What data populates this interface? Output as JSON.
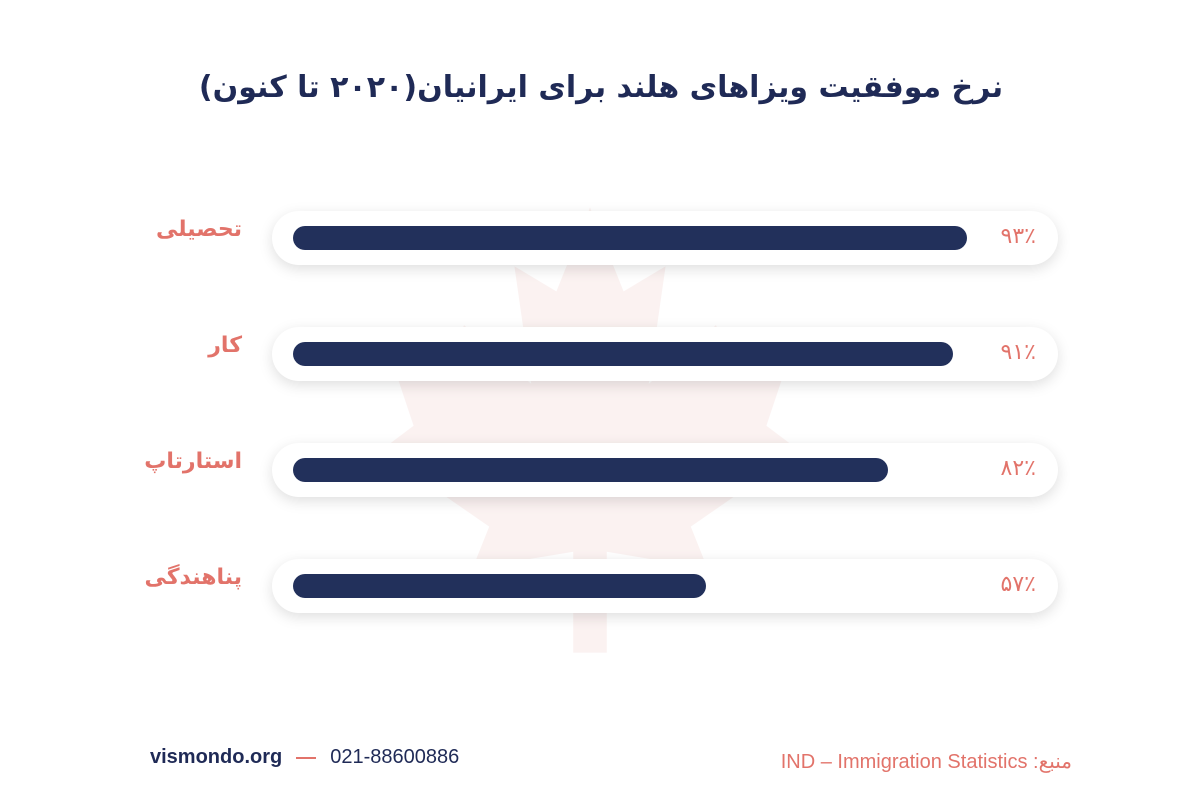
{
  "chart_data": {
    "type": "bar",
    "orientation": "horizontal",
    "title": "نرخ موفقیت ویزاهای هلند برای ایرانیان(۲۰۲۰ تا کنون)",
    "xlim": [
      0,
      100
    ],
    "grid": false,
    "bars": [
      {
        "category": "تحصیلی",
        "value": 93,
        "label": "۹۳٪"
      },
      {
        "category": "کار",
        "value": 91,
        "label": "۹۱٪"
      },
      {
        "category": "استارتاپ",
        "value": 82,
        "label": "۸۲٪"
      },
      {
        "category": "پناهندگی",
        "value": 57,
        "label": "۵۷٪"
      }
    ]
  },
  "colors": {
    "bar": "#22305b",
    "accent": "#e2736a",
    "title": "#1f2a56"
  },
  "footer": {
    "website": "vismondo.org",
    "phone": "021-88600886",
    "source_label": "منبع:",
    "source_value": "IND – Immigration Statistics"
  }
}
